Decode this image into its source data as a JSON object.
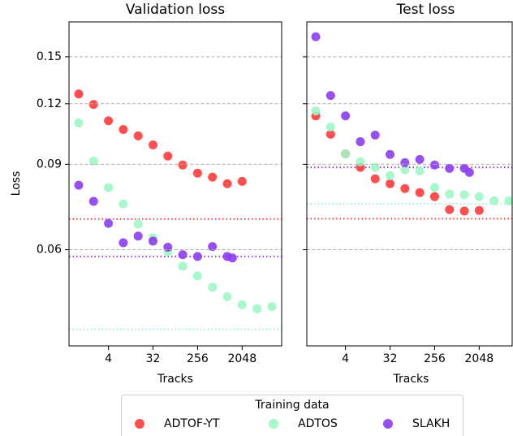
{
  "chart_data": [
    {
      "type": "scatter",
      "title": "Validation loss",
      "xlabel": "Tracks",
      "ylabel": "Loss",
      "xscale": "log",
      "yscale": "log",
      "xlim": [
        0.635,
        12950
      ],
      "ylim": [
        0.038,
        0.177
      ],
      "xticks": [
        4,
        32,
        256,
        2048
      ],
      "yticks": [
        0.06,
        0.09,
        0.12,
        0.15
      ],
      "grid": true,
      "legend_title": "Training data",
      "legend": "lower center",
      "series": [
        {
          "name": "ADTOF-YT",
          "color": "#ff3b3b",
          "x": [
            1,
            2,
            4,
            8,
            16,
            32,
            64,
            128,
            256,
            512,
            1024,
            2048
          ],
          "values": [
            0.1257,
            0.1196,
            0.1107,
            0.1062,
            0.103,
            0.0987,
            0.0936,
            0.0897,
            0.0863,
            0.0847,
            0.0821,
            0.083
          ],
          "reference": 0.0694
        },
        {
          "name": "ADTOS",
          "color": "#9ef7c6",
          "x": [
            1,
            2,
            4,
            8,
            16,
            32,
            64,
            128,
            256,
            512,
            1024,
            2048,
            4096,
            8192
          ],
          "values": [
            0.1095,
            0.0914,
            0.0806,
            0.0746,
            0.0678,
            0.0635,
            0.0595,
            0.0555,
            0.053,
            0.0502,
            0.048,
            0.0462,
            0.0453,
            0.0458
          ],
          "reference": 0.0411
        },
        {
          "name": "SLAKH",
          "color": "#8b3cf0",
          "x": [
            1,
            2,
            4,
            8,
            16,
            32,
            64,
            128,
            256,
            512,
            1024,
            1300
          ],
          "values": [
            0.0815,
            0.0755,
            0.068,
            0.062,
            0.064,
            0.0625,
            0.0607,
            0.0586,
            0.0581,
            0.0609,
            0.0581,
            0.0577
          ],
          "reference": 0.0581
        }
      ]
    },
    {
      "type": "scatter",
      "title": "Test loss",
      "xlabel": "Tracks",
      "xscale": "log",
      "yscale": "log",
      "xlim": [
        0.659,
        9550
      ],
      "ylim": [
        0.038,
        0.177
      ],
      "xticks": [
        4,
        32,
        256,
        2048
      ],
      "yticks": [
        0.06,
        0.09,
        0.12,
        0.15
      ],
      "grid": true,
      "series": [
        {
          "name": "ADTOF-YT",
          "color": "#ff3b3b",
          "x": [
            1,
            2,
            4,
            8,
            16,
            32,
            64,
            128,
            256,
            512,
            1024,
            2048
          ],
          "values": [
            0.1133,
            0.1038,
            0.0946,
            0.0887,
            0.084,
            0.0821,
            0.0802,
            0.0787,
            0.0772,
            0.0726,
            0.0721,
            0.0723
          ],
          "reference": 0.0695
        },
        {
          "name": "ADTOS",
          "color": "#9ef7c6",
          "x": [
            1,
            2,
            4,
            8,
            16,
            32,
            64,
            128,
            256,
            512,
            1024,
            2048,
            4096,
            8192
          ],
          "values": [
            0.116,
            0.1074,
            0.0946,
            0.0911,
            0.0887,
            0.0853,
            0.0877,
            0.0872,
            0.0806,
            0.0781,
            0.0779,
            0.0772,
            0.0757,
            0.0757
          ],
          "reference": 0.0746
        },
        {
          "name": "SLAKH",
          "color": "#8b3cf0",
          "x": [
            1,
            2,
            4,
            8,
            16,
            32,
            64,
            128,
            256,
            512,
            1024,
            1300
          ],
          "values": [
            0.165,
            0.1248,
            0.1133,
            0.1002,
            0.1034,
            0.0943,
            0.0907,
            0.0921,
            0.0897,
            0.0883,
            0.0883,
            0.0866
          ],
          "reference": 0.0887
        }
      ]
    }
  ]
}
